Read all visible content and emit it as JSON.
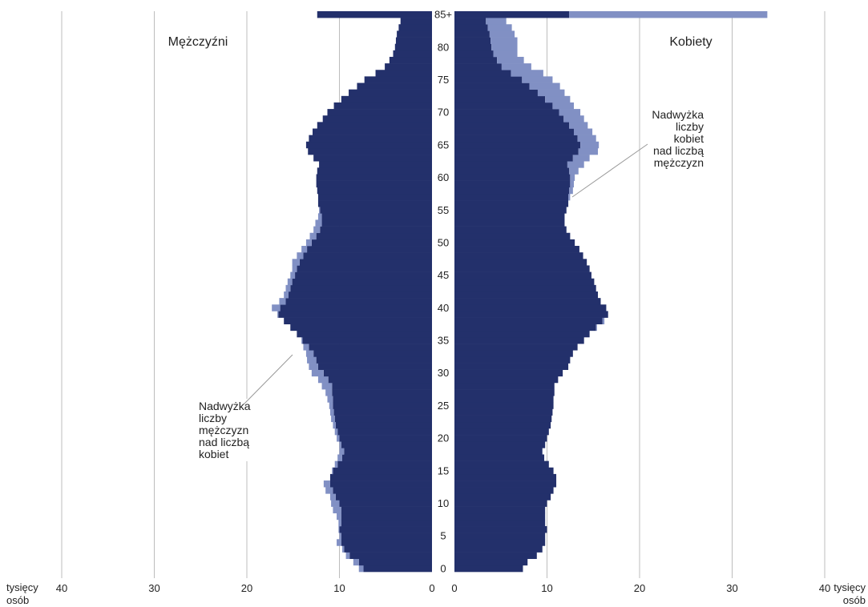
{
  "chart_data": {
    "type": "population_pyramid",
    "left_title": "Mężczyźni",
    "right_title": "Kobiety",
    "x_ticks_left": [
      "40",
      "30",
      "20",
      "10",
      "0"
    ],
    "x_ticks_right": [
      "0",
      "10",
      "20",
      "30",
      "40"
    ],
    "unit_left": [
      "tysięcy",
      "osób"
    ],
    "unit_right": [
      "tysięcy",
      "osób"
    ],
    "x_range": [
      0,
      40
    ],
    "age_ticks": [
      "0",
      "5",
      "10",
      "15",
      "20",
      "25",
      "30",
      "35",
      "40",
      "45",
      "50",
      "55",
      "60",
      "65",
      "70",
      "75",
      "80",
      "85+"
    ],
    "legend": [
      "Nadwyżka liczby mężczyzn nad liczbą kobiet",
      "Nadwyżka liczby kobiet nad liczbą mężczyzn"
    ],
    "annotation_left": [
      "Nadwyżka",
      "liczby",
      "mężczyzn",
      "nad liczbą",
      "kobiet"
    ],
    "annotation_right": [
      "Nadwyżka",
      "liczby",
      "kobiet",
      "nad liczbą",
      "mężczyzn"
    ],
    "colors": {
      "base": "#23306b",
      "excess": "#8190c4",
      "grid": "#bdbdbd"
    },
    "series": [
      {
        "name": "Mężczyźni",
        "values": [
          7.9,
          8.5,
          9.3,
          9.7,
          10.3,
          10.0,
          10.1,
          10.1,
          10.3,
          10.7,
          10.9,
          11.0,
          11.5,
          11.7,
          11.0,
          10.8,
          10.5,
          10.2,
          10.0,
          10.0,
          10.3,
          10.5,
          10.7,
          10.9,
          11.0,
          11.1,
          11.3,
          11.5,
          11.9,
          12.3,
          13.0,
          13.3,
          13.5,
          13.6,
          13.9,
          14.1,
          14.6,
          15.3,
          16.0,
          16.7,
          17.3,
          16.5,
          16.0,
          15.8,
          15.6,
          15.3,
          15.1,
          15.1,
          14.6,
          14.1,
          13.6,
          13.2,
          12.8,
          12.6,
          12.3,
          12.2,
          12.3,
          12.3,
          12.4,
          12.5,
          12.5,
          12.4,
          12.2,
          12.8,
          13.4,
          13.6,
          13.3,
          12.9,
          12.4,
          11.8,
          11.3,
          10.6,
          9.8,
          9.0,
          8.1,
          7.3,
          6.1,
          5.1,
          4.6,
          4.2,
          4.0,
          3.9,
          3.8,
          3.6,
          3.4,
          12.4
        ]
      },
      {
        "name": "Kobiety",
        "values": [
          7.4,
          7.9,
          8.9,
          9.5,
          9.8,
          9.8,
          10.0,
          9.8,
          9.8,
          9.8,
          10.0,
          10.4,
          10.7,
          11.0,
          11.0,
          10.7,
          10.2,
          9.7,
          9.5,
          9.8,
          10.0,
          10.2,
          10.4,
          10.5,
          10.6,
          10.7,
          10.7,
          10.8,
          10.8,
          11.2,
          11.7,
          12.3,
          12.5,
          12.8,
          13.3,
          14.0,
          14.6,
          15.4,
          16.2,
          16.6,
          16.4,
          15.8,
          15.5,
          15.3,
          15.1,
          14.8,
          14.6,
          14.3,
          13.9,
          13.5,
          13.0,
          12.5,
          12.1,
          11.9,
          11.9,
          12.1,
          12.3,
          12.5,
          12.8,
          12.9,
          13.0,
          13.4,
          14.0,
          14.6,
          15.5,
          15.6,
          15.3,
          14.9,
          14.4,
          14.0,
          13.6,
          12.9,
          12.5,
          11.9,
          11.4,
          10.6,
          9.6,
          8.3,
          7.5,
          6.8,
          6.8,
          6.8,
          6.5,
          6.2,
          5.6,
          33.8
        ]
      }
    ]
  }
}
